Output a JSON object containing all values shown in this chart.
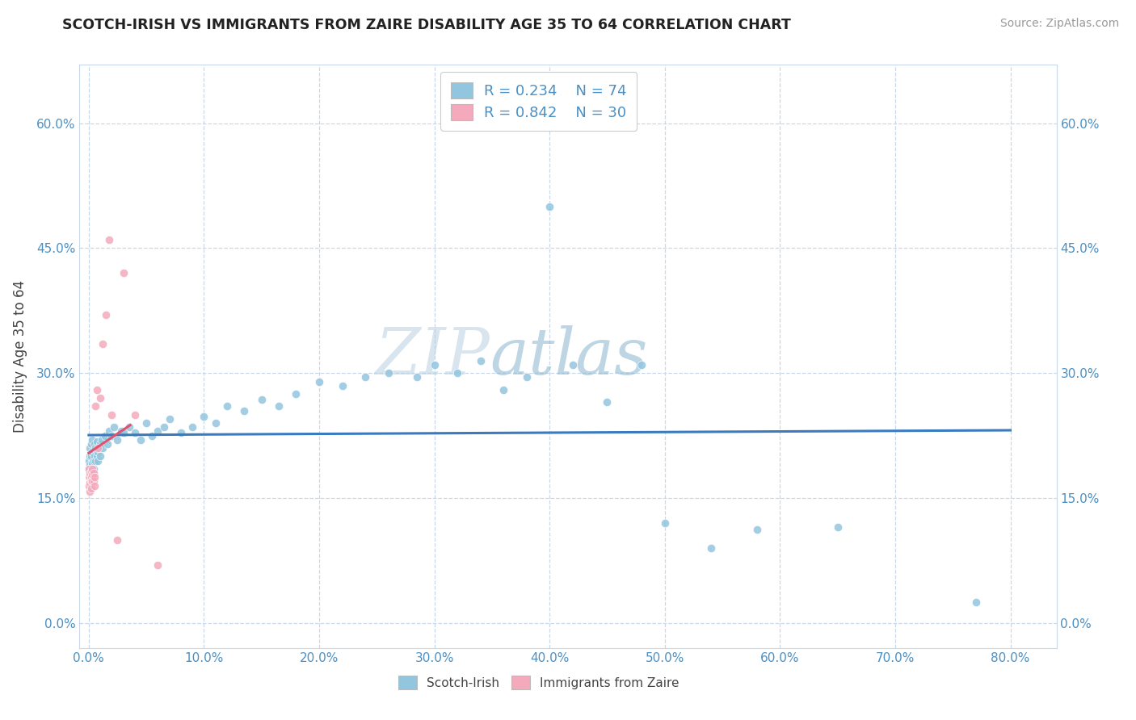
{
  "title": "SCOTCH-IRISH VS IMMIGRANTS FROM ZAIRE DISABILITY AGE 35 TO 64 CORRELATION CHART",
  "source": "Source: ZipAtlas.com",
  "xlabel_ticks": [
    "0.0%",
    "10.0%",
    "20.0%",
    "30.0%",
    "40.0%",
    "50.0%",
    "60.0%",
    "70.0%",
    "80.0%"
  ],
  "xlabel_vals": [
    0.0,
    0.1,
    0.2,
    0.3,
    0.4,
    0.5,
    0.6,
    0.7,
    0.8
  ],
  "ylabel_ticks": [
    "0.0%",
    "15.0%",
    "30.0%",
    "45.0%",
    "60.0%"
  ],
  "ylabel_vals": [
    0.0,
    0.15,
    0.3,
    0.45,
    0.6
  ],
  "xlim": [
    -0.008,
    0.84
  ],
  "ylim": [
    -0.03,
    0.67
  ],
  "color_blue": "#92c5de",
  "color_pink": "#f4a9bc",
  "color_blue_line": "#3a7abf",
  "color_pink_line": "#e0536e",
  "ylabel": "Disability Age 35 to 64",
  "si_x": [
    0.0,
    0.0,
    0.001,
    0.001,
    0.001,
    0.001,
    0.002,
    0.002,
    0.002,
    0.002,
    0.003,
    0.003,
    0.003,
    0.003,
    0.004,
    0.004,
    0.004,
    0.005,
    0.005,
    0.006,
    0.006,
    0.007,
    0.007,
    0.008,
    0.008,
    0.009,
    0.01,
    0.01,
    0.011,
    0.012,
    0.014,
    0.016,
    0.018,
    0.02,
    0.022,
    0.025,
    0.028,
    0.03,
    0.035,
    0.04,
    0.045,
    0.05,
    0.055,
    0.06,
    0.065,
    0.07,
    0.08,
    0.09,
    0.1,
    0.11,
    0.12,
    0.135,
    0.15,
    0.165,
    0.18,
    0.2,
    0.22,
    0.24,
    0.26,
    0.285,
    0.3,
    0.32,
    0.34,
    0.36,
    0.38,
    0.4,
    0.42,
    0.45,
    0.48,
    0.5,
    0.54,
    0.58,
    0.65,
    0.77
  ],
  "si_y": [
    0.195,
    0.185,
    0.19,
    0.2,
    0.175,
    0.21,
    0.188,
    0.2,
    0.178,
    0.215,
    0.192,
    0.205,
    0.18,
    0.22,
    0.195,
    0.208,
    0.185,
    0.2,
    0.215,
    0.195,
    0.21,
    0.2,
    0.218,
    0.205,
    0.195,
    0.21,
    0.2,
    0.215,
    0.22,
    0.21,
    0.225,
    0.215,
    0.23,
    0.225,
    0.235,
    0.22,
    0.23,
    0.228,
    0.235,
    0.228,
    0.22,
    0.24,
    0.225,
    0.23,
    0.235,
    0.245,
    0.228,
    0.235,
    0.248,
    0.24,
    0.26,
    0.255,
    0.268,
    0.26,
    0.275,
    0.29,
    0.285,
    0.295,
    0.3,
    0.295,
    0.31,
    0.3,
    0.315,
    0.28,
    0.295,
    0.5,
    0.31,
    0.265,
    0.31,
    0.12,
    0.09,
    0.112,
    0.115,
    0.025
  ],
  "z_x": [
    0.0,
    0.0,
    0.0,
    0.001,
    0.001,
    0.001,
    0.001,
    0.002,
    0.002,
    0.002,
    0.002,
    0.003,
    0.003,
    0.003,
    0.004,
    0.004,
    0.005,
    0.005,
    0.006,
    0.007,
    0.008,
    0.01,
    0.012,
    0.015,
    0.018,
    0.02,
    0.025,
    0.03,
    0.04,
    0.06
  ],
  "z_y": [
    0.185,
    0.175,
    0.165,
    0.175,
    0.18,
    0.168,
    0.158,
    0.175,
    0.182,
    0.17,
    0.162,
    0.178,
    0.185,
    0.17,
    0.18,
    0.17,
    0.175,
    0.165,
    0.26,
    0.28,
    0.21,
    0.27,
    0.335,
    0.37,
    0.46,
    0.25,
    0.1,
    0.42,
    0.25,
    0.07
  ]
}
